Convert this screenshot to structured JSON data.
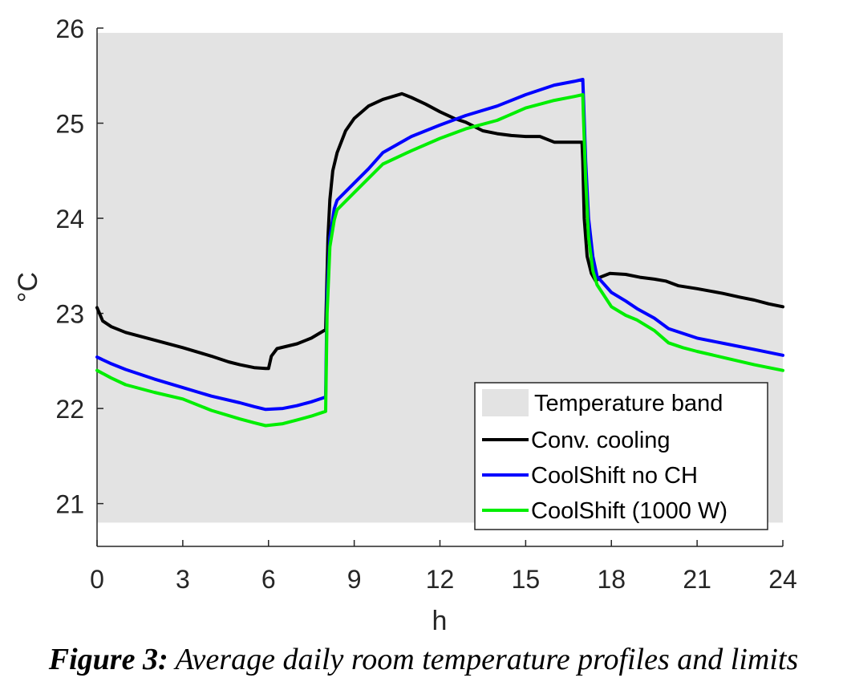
{
  "chart_data": {
    "type": "line",
    "title": "",
    "xlabel": "h",
    "ylabel": "°C",
    "xlim": [
      0,
      24
    ],
    "ylim": [
      20.55,
      26
    ],
    "xticks": [
      0,
      3,
      6,
      9,
      12,
      15,
      18,
      21,
      24
    ],
    "yticks": [
      21,
      22,
      23,
      24,
      25,
      26
    ],
    "grid": false,
    "legend_position": "bottom-right",
    "band": {
      "name": "Temperature band",
      "color": "#e3e3e3",
      "lower": 20.8,
      "upper": 25.95
    },
    "series": [
      {
        "name": "Conv. cooling",
        "color": "#000000",
        "x": [
          0,
          0.2,
          0.5,
          1,
          2,
          3,
          4,
          4.6,
          5,
          5.5,
          5.9,
          6.0,
          6.1,
          6.3,
          7,
          7.5,
          7.95,
          8.0,
          8.08,
          8.15,
          8.25,
          8.4,
          8.7,
          9.0,
          9.5,
          10.0,
          10.67,
          11.0,
          11.5,
          12.0,
          12.5,
          12.9,
          13.5,
          14.0,
          14.5,
          15.0,
          15.5,
          16.0,
          16.5,
          16.97,
          17.0,
          17.05,
          17.15,
          17.3,
          17.45,
          17.6,
          17.95,
          18.5,
          19.0,
          19.5,
          19.9,
          20.35,
          21.0,
          21.9,
          22.5,
          23.0,
          23.5,
          24.0
        ],
        "values": [
          23.06,
          22.92,
          22.86,
          22.8,
          22.72,
          22.64,
          22.55,
          22.49,
          22.46,
          22.43,
          22.42,
          22.42,
          22.55,
          22.63,
          22.68,
          22.74,
          22.82,
          22.82,
          23.8,
          24.2,
          24.5,
          24.69,
          24.92,
          25.05,
          25.18,
          25.25,
          25.31,
          25.27,
          25.2,
          25.12,
          25.05,
          25.01,
          24.92,
          24.89,
          24.87,
          24.86,
          24.86,
          24.8,
          24.8,
          24.8,
          24.6,
          24.0,
          23.6,
          23.42,
          23.34,
          23.38,
          23.42,
          23.41,
          23.38,
          23.36,
          23.34,
          23.29,
          23.26,
          23.21,
          23.17,
          23.14,
          23.1,
          23.07
        ]
      },
      {
        "name": "CoolShift no CH",
        "color": "#0000ff",
        "x": [
          0,
          0.5,
          1,
          2,
          3,
          4,
          5,
          5.5,
          5.9,
          6.5,
          7,
          7.5,
          8.0,
          8.05,
          8.15,
          8.3,
          8.4,
          9.0,
          9.5,
          10.0,
          11.0,
          12.0,
          12.9,
          14.0,
          15.0,
          16.0,
          16.7,
          17.0,
          17.02,
          17.1,
          17.2,
          17.35,
          17.5,
          18.0,
          18.5,
          18.9,
          19.5,
          20.0,
          20.5,
          21.0,
          22.0,
          23.0,
          24.0
        ],
        "values": [
          22.54,
          22.47,
          22.41,
          22.31,
          22.22,
          22.13,
          22.06,
          22.02,
          21.99,
          22.0,
          22.03,
          22.07,
          22.12,
          23.2,
          23.8,
          24.1,
          24.19,
          24.37,
          24.52,
          24.69,
          24.86,
          24.98,
          25.08,
          25.18,
          25.3,
          25.4,
          25.44,
          25.46,
          25.3,
          24.6,
          24.0,
          23.6,
          23.39,
          23.22,
          23.13,
          23.05,
          22.95,
          22.84,
          22.79,
          22.74,
          22.68,
          22.62,
          22.56
        ]
      },
      {
        "name": "CoolShift (1000 W)",
        "color": "#00ee00",
        "x": [
          0,
          0.5,
          1,
          2,
          3,
          4,
          5,
          5.5,
          5.9,
          6.5,
          7,
          7.5,
          8.0,
          8.05,
          8.15,
          8.3,
          8.4,
          9.0,
          9.5,
          10.0,
          11.0,
          12.0,
          12.9,
          14.0,
          15.0,
          16.0,
          16.7,
          17.0,
          17.02,
          17.1,
          17.2,
          17.35,
          17.5,
          18.0,
          18.5,
          18.9,
          19.5,
          20.0,
          20.5,
          21.0,
          22.0,
          23.0,
          24.0
        ],
        "values": [
          22.4,
          22.32,
          22.25,
          22.17,
          22.1,
          21.98,
          21.89,
          21.85,
          21.82,
          21.84,
          21.88,
          21.92,
          21.97,
          23.0,
          23.7,
          23.98,
          24.09,
          24.27,
          24.42,
          24.57,
          24.71,
          24.84,
          24.94,
          25.03,
          25.16,
          25.24,
          25.28,
          25.3,
          25.1,
          24.4,
          23.8,
          23.45,
          23.3,
          23.07,
          22.98,
          22.93,
          22.82,
          22.69,
          22.64,
          22.6,
          22.53,
          22.46,
          22.4
        ]
      }
    ]
  },
  "caption": {
    "label": "Figure 3:",
    "text": " Average daily room temperature profiles and limits"
  }
}
